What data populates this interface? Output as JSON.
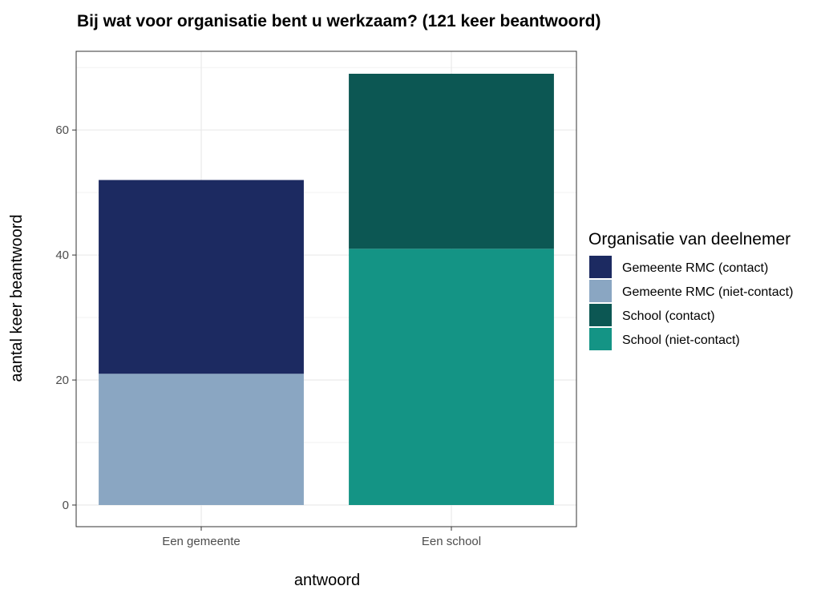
{
  "chart_data": {
    "type": "bar",
    "stacked": true,
    "title": "Bij wat voor organisatie bent u werkzaam? (121 keer beantwoord)",
    "xlabel": "antwoord",
    "ylabel": "aantal keer beantwoord",
    "categories": [
      "Een gemeente",
      "Een school"
    ],
    "ylim": [
      0,
      69
    ],
    "yticks": [
      0,
      20,
      40,
      60
    ],
    "grid": true,
    "legend": {
      "title": "Organisatie van deelnemer",
      "position": "right",
      "entries": [
        {
          "label": "Gemeente RMC (contact)",
          "color": "#1c2a61"
        },
        {
          "label": "Gemeente RMC (niet-contact)",
          "color": "#8aa6c2"
        },
        {
          "label": "School (contact)",
          "color": "#0c5753"
        },
        {
          "label": "School (niet-contact)",
          "color": "#149485"
        }
      ]
    },
    "series": [
      {
        "name": "Gemeente RMC (niet-contact)",
        "color": "#8aa6c2",
        "values": [
          21,
          0
        ]
      },
      {
        "name": "Gemeente RMC (contact)",
        "color": "#1c2a61",
        "values": [
          31,
          0
        ]
      },
      {
        "name": "School (niet-contact)",
        "color": "#149485",
        "values": [
          0,
          41
        ]
      },
      {
        "name": "School (contact)",
        "color": "#0c5753",
        "values": [
          0,
          28
        ]
      }
    ]
  }
}
